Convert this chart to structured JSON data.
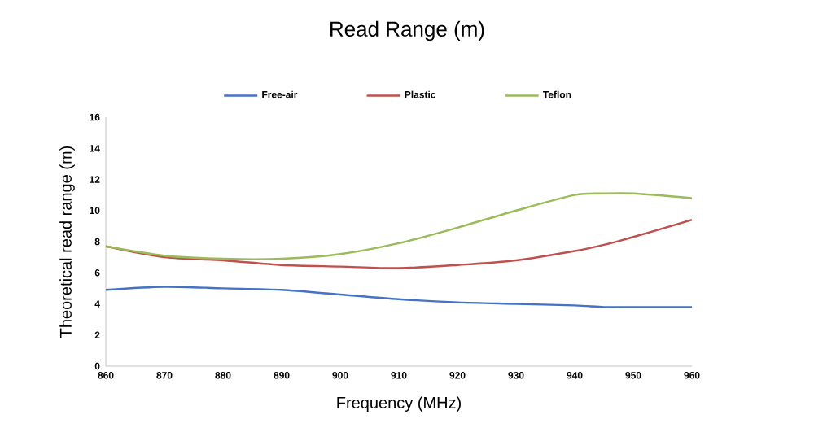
{
  "chart_data": {
    "type": "line",
    "title": "Read Range (m)",
    "xlabel": "Frequency (MHz)",
    "ylabel": "Theoretical read range (m)",
    "x": [
      860,
      870,
      880,
      890,
      900,
      910,
      920,
      930,
      940,
      945,
      950,
      960
    ],
    "series": [
      {
        "name": "Free-air",
        "color": "#4472c4",
        "values": [
          4.9,
          5.1,
          5.0,
          4.9,
          4.6,
          4.3,
          4.1,
          4.0,
          3.9,
          3.8,
          3.8,
          3.8
        ]
      },
      {
        "name": "Plastic",
        "color": "#c0504d",
        "values": [
          7.7,
          7.0,
          6.8,
          6.5,
          6.4,
          6.3,
          6.5,
          6.8,
          7.4,
          7.8,
          8.3,
          9.4
        ]
      },
      {
        "name": "Teflon",
        "color": "#9bbb59",
        "values": [
          7.7,
          7.1,
          6.9,
          6.9,
          7.2,
          7.9,
          8.9,
          10.0,
          11.0,
          11.1,
          11.1,
          10.8
        ]
      }
    ],
    "xlim": [
      860,
      960
    ],
    "xticks": [
      860,
      870,
      880,
      890,
      900,
      910,
      920,
      930,
      940,
      950,
      960
    ],
    "ylim": [
      0,
      16
    ],
    "yticks": [
      0,
      2,
      4,
      6,
      8,
      10,
      12,
      14,
      16
    ],
    "grid": false,
    "legend": "top",
    "marker": "none",
    "line_style": "solid"
  }
}
